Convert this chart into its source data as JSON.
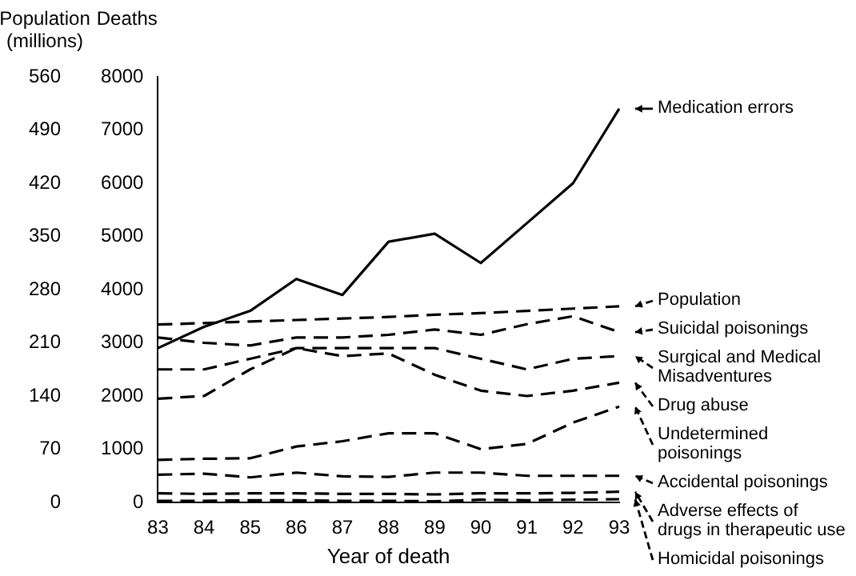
{
  "chart_data": {
    "type": "line",
    "xlabel": "Year of death",
    "ylabel": "Deaths",
    "y2label": "Population (millions)",
    "categories": [
      "83",
      "84",
      "85",
      "86",
      "87",
      "88",
      "89",
      "90",
      "91",
      "92",
      "93"
    ],
    "ylim": [
      0,
      8000
    ],
    "yticks": [
      0,
      1000,
      2000,
      3000,
      4000,
      5000,
      6000,
      7000,
      8000
    ],
    "y2lim": [
      0,
      560
    ],
    "y2ticks": [
      0,
      70,
      140,
      210,
      280,
      350,
      420,
      490,
      560
    ],
    "grid": false,
    "legend": "right",
    "marker": "none",
    "series": [
      {
        "name": "Medication errors",
        "color": "#000000",
        "line_style": "solid",
        "values": [
          2900,
          3300,
          3600,
          4200,
          3900,
          4900,
          5050,
          4500,
          5250,
          6000,
          7400
        ]
      },
      {
        "name": "Population",
        "color": "#000000",
        "line_style": "dashed",
        "axis": "y2",
        "values": [
          234,
          236,
          238,
          240,
          242,
          244,
          247,
          249,
          252,
          255,
          258
        ]
      },
      {
        "name": "Suicidal poisonings",
        "color": "#000000",
        "line_style": "dashed",
        "values": [
          3100,
          3000,
          2950,
          3100,
          3100,
          3150,
          3250,
          3150,
          3350,
          3500,
          3200
        ]
      },
      {
        "name": "Surgical and Medical Misadventures",
        "color": "#000000",
        "line_style": "dashed",
        "values": [
          2500,
          2500,
          2700,
          2900,
          2900,
          2900,
          2900,
          2700,
          2500,
          2700,
          2750
        ]
      },
      {
        "name": "Drug abuse",
        "color": "#000000",
        "line_style": "dashed",
        "values": [
          1950,
          2000,
          2500,
          2900,
          2750,
          2800,
          2400,
          2100,
          2000,
          2100,
          2250
        ]
      },
      {
        "name": "Undetermined poisonings",
        "color": "#000000",
        "line_style": "dashed",
        "values": [
          800,
          820,
          830,
          1050,
          1150,
          1300,
          1300,
          1000,
          1100,
          1500,
          1800
        ]
      },
      {
        "name": "Accidental poisonings",
        "color": "#000000",
        "line_style": "dashed",
        "values": [
          520,
          540,
          470,
          560,
          490,
          480,
          560,
          560,
          500,
          500,
          500
        ]
      },
      {
        "name": "Adverse effects of drugs in therapeutic use",
        "color": "#000000",
        "line_style": "dashed",
        "values": [
          170,
          160,
          170,
          170,
          160,
          160,
          150,
          170,
          170,
          180,
          200
        ]
      },
      {
        "name": "Homicidal poisonings",
        "color": "#000000",
        "line_style": "dashed",
        "values": [
          30,
          30,
          40,
          40,
          30,
          30,
          20,
          50,
          40,
          50,
          60
        ]
      }
    ]
  }
}
